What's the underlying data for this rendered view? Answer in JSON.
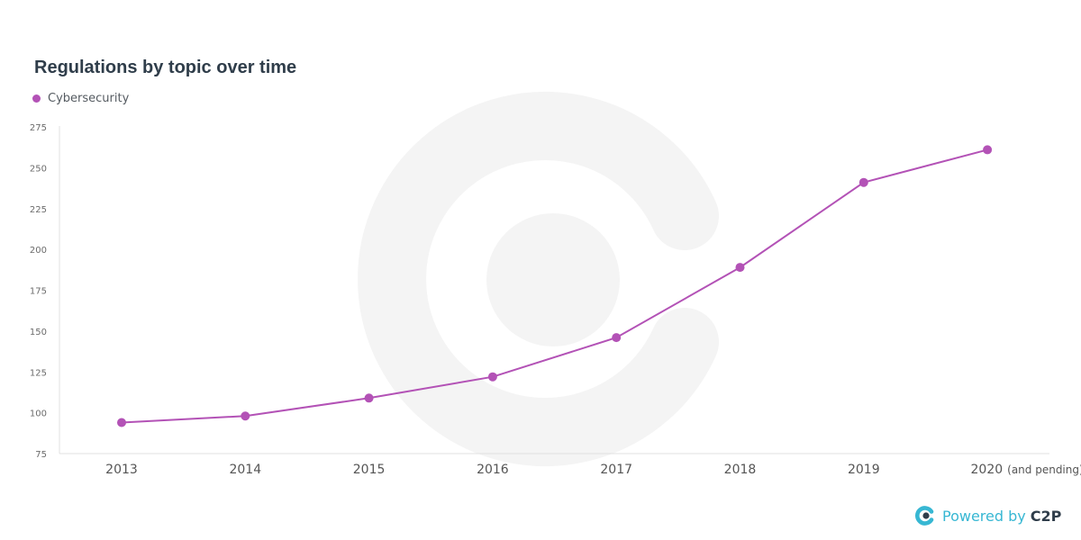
{
  "chart_data": {
    "type": "line",
    "title": "Regulations by topic over time",
    "categories": [
      "2013",
      "2014",
      "2015",
      "2016",
      "2017",
      "2018",
      "2019",
      "2020"
    ],
    "category_suffix": [
      "",
      "",
      "",
      "",
      "",
      "",
      "",
      "(and pending)"
    ],
    "series": [
      {
        "name": "Cybersecurity",
        "color": "#b352b6",
        "values": [
          94,
          98,
          109,
          122,
          146,
          189,
          241,
          261
        ]
      }
    ],
    "yticks": [
      "75",
      "100",
      "125",
      "150",
      "175",
      "200",
      "225",
      "250",
      "275"
    ],
    "ylim": [
      75,
      275
    ],
    "grid": false,
    "legend": "top-left"
  },
  "footer": {
    "text": "Powered by",
    "brand": "C2P",
    "logo_icon": "c2p-logo-icon",
    "accent_color": "#37b7d3"
  },
  "watermark": {
    "icon": "c-logo-watermark-icon",
    "color": "#f4f4f4"
  }
}
